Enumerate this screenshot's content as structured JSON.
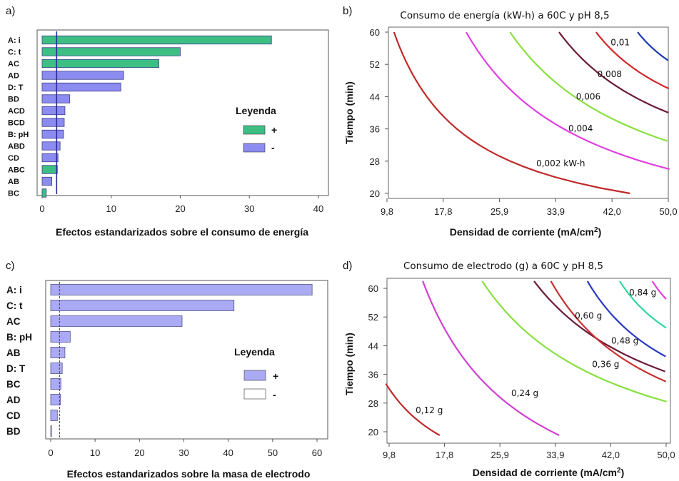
{
  "panel_labels": [
    "a)",
    "b)",
    "c)",
    "d)"
  ],
  "chart_data": [
    {
      "type": "bar",
      "orientation": "horizontal",
      "categories": [
        "A: i",
        "C: t",
        "AC",
        "AD",
        "D: T",
        "BD",
        "ACD",
        "BCD",
        "B: pH",
        "ABD",
        "CD",
        "ABC",
        "AB",
        "BC"
      ],
      "values": [
        33.2,
        20.0,
        16.9,
        11.8,
        11.4,
        4.0,
        3.3,
        3.2,
        3.1,
        2.6,
        2.3,
        2.2,
        1.4,
        0.6
      ],
      "signs": [
        "+",
        "+",
        "+",
        "-",
        "-",
        "-",
        "-",
        "-",
        "-",
        "-",
        "-",
        "+",
        "-",
        "+"
      ],
      "reference_line": 2.1,
      "xlabel": "Efectos estandarizados sobre el consumo de energía",
      "xlim": [
        0,
        40
      ],
      "xticks": [
        "0",
        "10",
        "20",
        "30",
        "40"
      ],
      "legend": {
        "title": "Leyenda",
        "entries": [
          {
            "label": "+",
            "color": "#3dbf84"
          },
          {
            "label": "-",
            "color": "#8c8cf0"
          }
        ],
        "placement": "right"
      }
    },
    {
      "type": "contour",
      "title": "Consumo de energía (kW-h) a 60C y pH 8,5",
      "xlabel": "Densidad de corriente (mA/cm²)",
      "ylabel": "Tiempo (min)",
      "xlim": [
        9.8,
        50.0
      ],
      "ylim": [
        20,
        60
      ],
      "xticks": [
        "9,8",
        "17,8",
        "25,9",
        "33,9",
        "42,0",
        "50,0"
      ],
      "yticks": [
        "20",
        "28",
        "36",
        "44",
        "52",
        "60"
      ],
      "contours": [
        {
          "level": 0.002,
          "label": "0,002  kW-h",
          "color": "#c02a2a",
          "x_at_y20": 44.5,
          "x_at_y60": 13.0
        },
        {
          "level": 0.004,
          "label": "0,004",
          "color": "#e040e0",
          "x_at_y26": 50.0,
          "x_at_y60": 21.0
        },
        {
          "level": 0.006,
          "label": "0,006",
          "color": "#88e040",
          "x_at_y33": 50.0,
          "x_at_y60": 29.5
        },
        {
          "level": 0.008,
          "label": "0,008",
          "color": "#6a1a3a",
          "x_at_y40": 50.0,
          "x_at_y60": 36.5
        },
        {
          "level": 0.01,
          "label": "0,01",
          "color": "#d02828",
          "x_at_y46": 50.0,
          "x_at_y60": 41.5
        },
        {
          "level": 0.012,
          "label": "",
          "color": "#1a3ab0",
          "x_at_y53": 50.0,
          "x_at_y60": 45.5
        }
      ]
    },
    {
      "type": "bar",
      "orientation": "horizontal",
      "categories": [
        "A: i",
        "C: t",
        "AC",
        "B: pH",
        "AB",
        "D: T",
        "BC",
        "AD",
        "CD",
        "BD"
      ],
      "values": [
        58.9,
        41.3,
        29.6,
        4.4,
        3.2,
        2.6,
        2.3,
        2.2,
        1.5,
        0.2
      ],
      "signs": [
        "+",
        "+",
        "+",
        "+",
        "+",
        "+",
        "+",
        "+",
        "+",
        "-"
      ],
      "reference_line": 2.0,
      "xlabel": "Efectos estandarizados sobre la masa de electrodo",
      "xlim": [
        0,
        60
      ],
      "xticks": [
        "0",
        "10",
        "20",
        "30",
        "40",
        "50",
        "60"
      ],
      "legend": {
        "title": "Leyenda",
        "entries": [
          {
            "label": "+",
            "color": "#aaaaf5"
          },
          {
            "label": "-",
            "color": "#ffffff"
          }
        ],
        "placement": "right"
      }
    },
    {
      "type": "contour",
      "title": "Consumo de electrodo (g) a 60C y pH 8,5",
      "xlabel": "Densidad de corriente (mA/cm²)",
      "ylabel": "Tiempo (min)",
      "xlim": [
        9.8,
        50.0
      ],
      "ylim": [
        20,
        60
      ],
      "xticks": [
        "9,8",
        "17,8",
        "25,9",
        "33,9",
        "42,0",
        "50,0"
      ],
      "yticks": [
        "20",
        "28",
        "36",
        "44",
        "52",
        "60"
      ],
      "contours": [
        {
          "level": 0.12,
          "label": "0,12 g",
          "color": "#c02a2a",
          "x_at_y19": 19.0,
          "x_at_y43": 9.8
        },
        {
          "level": 0.24,
          "label": "0,24 g",
          "color": "#d040d0",
          "x_at_y19": 34.5,
          "x_at_y62": 13.0
        },
        {
          "level": 0.36,
          "label": "0,36 g",
          "color": "#88e040",
          "x_at_y20": 50.0,
          "x_at_y62": 18.0
        },
        {
          "level": 0.48,
          "label": "0,48 g",
          "color": "#6a1a3a",
          "x_at_y26": 50.0,
          "x_at_y62": 26.0
        },
        {
          "level": 0.6,
          "label": "0,60 g",
          "color": "#c83030",
          "x_at_y34": 50.0,
          "x_at_y62": 31.5
        },
        {
          "level": 0.72,
          "label": "",
          "color": "#2a3ac0",
          "x_at_y41": 50.0,
          "x_at_y62": 36.5
        },
        {
          "level": 0.84,
          "label": "0,84 g",
          "color": "#30d8a0",
          "x_at_y49": 50.0,
          "x_at_y62": 42.0
        },
        {
          "level": 0.96,
          "label": "",
          "color": "#e040e0",
          "x_at_y57": 50.0,
          "x_at_y62": 47.0
        }
      ]
    }
  ]
}
